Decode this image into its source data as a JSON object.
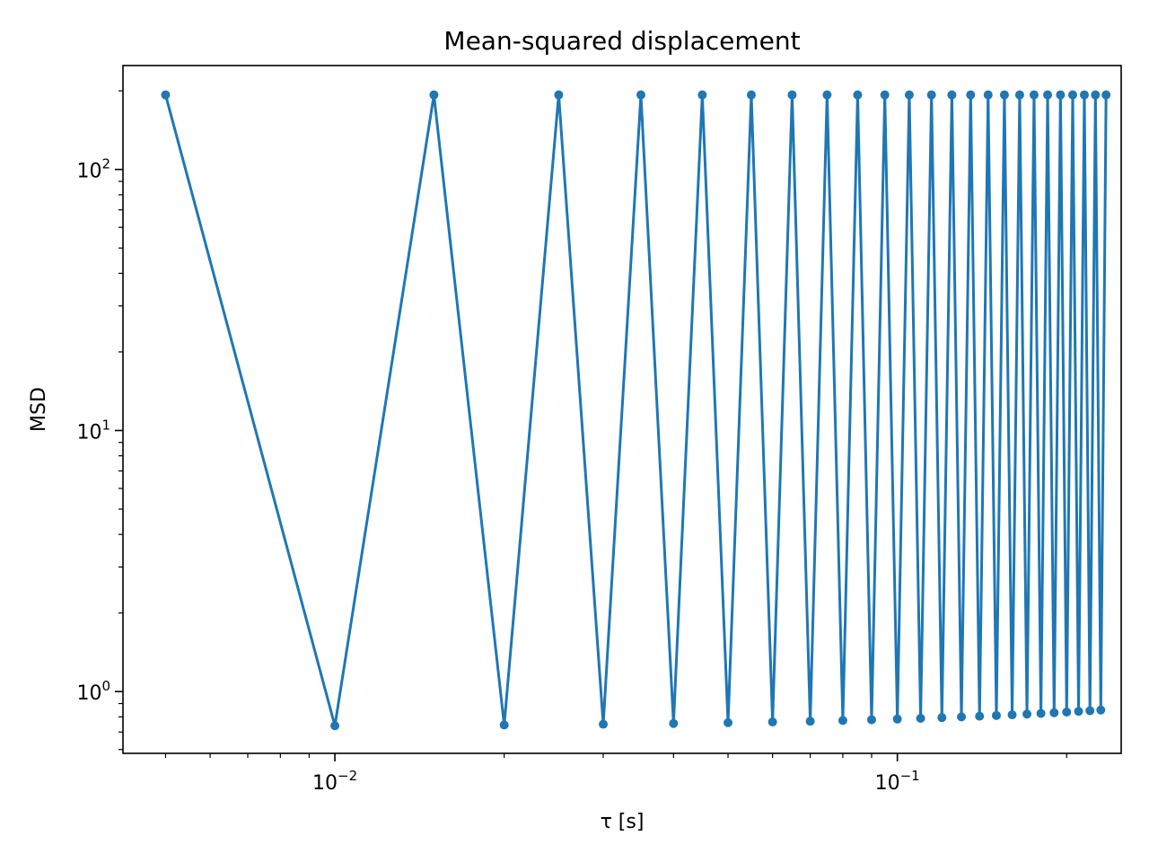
{
  "chart_data": {
    "type": "line",
    "title": "Mean-squared displacement",
    "xlabel": "τ [s]",
    "ylabel": "MSD",
    "x_scale": "log",
    "y_scale": "log",
    "xlim": [
      0.0042,
      0.25
    ],
    "ylim": [
      0.58,
      250
    ],
    "grid": false,
    "marker": "circle",
    "series_color": "#1f77b4",
    "x_ticks": [
      {
        "value": 0.01,
        "base": "10",
        "exponent": "−2"
      },
      {
        "value": 0.1,
        "base": "10",
        "exponent": "−1"
      }
    ],
    "y_ticks": [
      {
        "value": 1,
        "base": "10",
        "exponent": "0"
      },
      {
        "value": 10,
        "base": "10",
        "exponent": "1"
      },
      {
        "value": 100,
        "base": "10",
        "exponent": "2"
      }
    ],
    "series": [
      {
        "x": [
          0.005,
          0.01,
          0.015,
          0.02,
          0.025,
          0.03,
          0.035,
          0.04,
          0.045,
          0.05,
          0.055,
          0.06,
          0.065,
          0.07,
          0.075,
          0.08,
          0.085,
          0.09,
          0.095,
          0.1,
          0.105,
          0.11,
          0.115,
          0.12,
          0.125,
          0.13,
          0.135,
          0.14,
          0.145,
          0.15,
          0.155,
          0.16,
          0.165,
          0.17,
          0.175,
          0.18,
          0.185,
          0.19,
          0.195,
          0.2,
          0.205,
          0.21,
          0.215,
          0.22,
          0.225,
          0.23,
          0.235
        ],
        "y": [
          193,
          0.74,
          193,
          0.745,
          193,
          0.75,
          193,
          0.755,
          193,
          0.76,
          193,
          0.765,
          193,
          0.77,
          193,
          0.775,
          193,
          0.78,
          193,
          0.785,
          193,
          0.79,
          193,
          0.795,
          193,
          0.8,
          193,
          0.805,
          193,
          0.81,
          193,
          0.815,
          193,
          0.82,
          193,
          0.825,
          193,
          0.83,
          193,
          0.835,
          193,
          0.84,
          193,
          0.845,
          193,
          0.85,
          193
        ]
      }
    ]
  }
}
